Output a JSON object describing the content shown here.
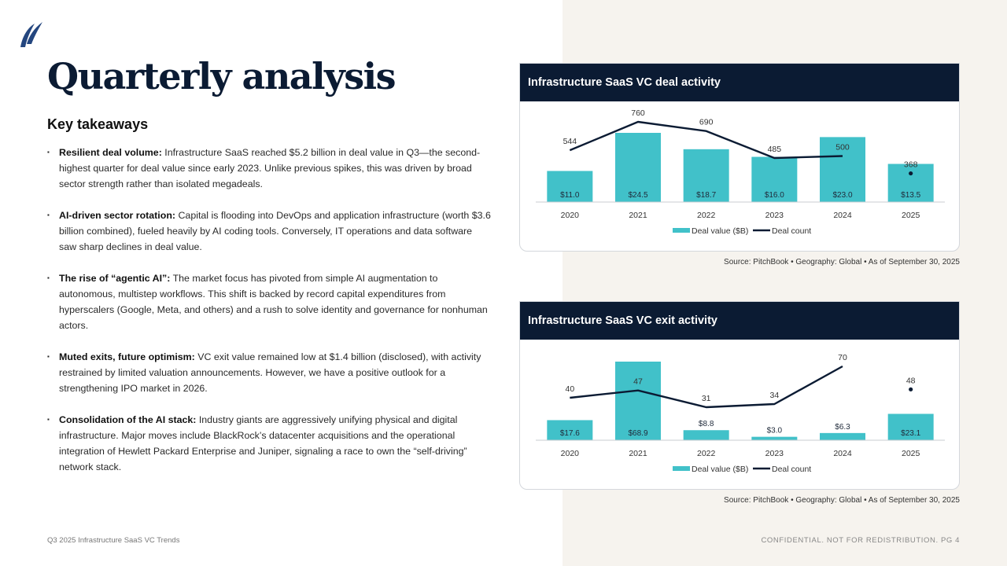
{
  "page": {
    "title": "Quarterly analysis",
    "subtitle": "Key takeaways",
    "footer_left": "Q3 2025 Infrastructure SaaS VC Trends",
    "footer_right": "CONFIDENTIAL. NOT FOR REDISTRIBUTION.  PG 4"
  },
  "takeaways": [
    {
      "lead": "Resilient deal volume:",
      "text": " Infrastructure SaaS reached $5.2 billion in deal value in Q3—the second-highest quarter for deal value since early 2023. Unlike previous spikes, this was driven by broad sector strength rather than isolated megadeals."
    },
    {
      "lead": "AI-driven sector rotation:",
      "text": " Capital is flooding into DevOps and application infrastructure (worth $3.6 billion combined), fueled heavily by AI coding tools. Conversely, IT operations and data software saw sharp declines in deal value."
    },
    {
      "lead": "The rise of “agentic AI”:",
      "text": " The market focus has pivoted from simple AI augmentation to autonomous, multistep workflows. This shift is backed by record capital expenditures from hyperscalers (Google, Meta, and others) and a rush to solve identity and governance for nonhuman actors."
    },
    {
      "lead": "Muted exits, future optimism:",
      "text": " VC exit value remained low at $1.4 billion (disclosed), with activity restrained by limited valuation announcements. However, we have a positive outlook for a strengthening IPO market in 2026."
    },
    {
      "lead": "Consolidation of the AI stack:",
      "text": " Industry giants are aggressively unifying physical and digital infrastructure. Major moves include BlackRock’s datacenter acquisitions and the operational integration of Hewlett Packard Enterprise and Juniper, signaling a race to own the “self-driving” network stack."
    }
  ],
  "colors": {
    "bar": "#41c1c9",
    "line": "#0b1b33",
    "header": "#0b1b33",
    "panel": "#f6f3ee"
  },
  "chart_data": [
    {
      "type": "bar",
      "title": "Infrastructure SaaS VC deal activity",
      "categories": [
        "2020",
        "2021",
        "2022",
        "2023",
        "2024",
        "2025"
      ],
      "series": [
        {
          "name": "Deal value ($B)",
          "kind": "bar",
          "values": [
            11.0,
            24.5,
            18.7,
            16.0,
            23.0,
            13.5
          ],
          "labels": [
            "$11.0",
            "$24.5",
            "$18.7",
            "$16.0",
            "$23.0",
            "$13.5"
          ]
        },
        {
          "name": "Deal count",
          "kind": "line",
          "values": [
            544,
            760,
            690,
            485,
            500,
            368
          ],
          "labels": [
            "544",
            "760",
            "690",
            "485",
            "500",
            "368"
          ],
          "last_point_marker_only": true
        }
      ],
      "source": "Source: PitchBook  •  Geography: Global  •  As of September 30, 2025"
    },
    {
      "type": "bar",
      "title": "Infrastructure SaaS VC exit activity",
      "categories": [
        "2020",
        "2021",
        "2022",
        "2023",
        "2024",
        "2025"
      ],
      "series": [
        {
          "name": "Deal value ($B)",
          "kind": "bar",
          "values": [
            17.6,
            68.9,
            8.8,
            3.0,
            6.3,
            23.1
          ],
          "labels": [
            "$17.6",
            "$68.9",
            "$8.8",
            "$3.0",
            "$6.3",
            "$23.1"
          ]
        },
        {
          "name": "Deal count",
          "kind": "line",
          "values": [
            40,
            47,
            31,
            34,
            70,
            48
          ],
          "labels": [
            "40",
            "47",
            "31",
            "34",
            "70",
            "48"
          ],
          "last_point_marker_only": true
        }
      ],
      "source": "Source: PitchBook  •  Geography: Global  •  As of September 30, 2025"
    }
  ]
}
